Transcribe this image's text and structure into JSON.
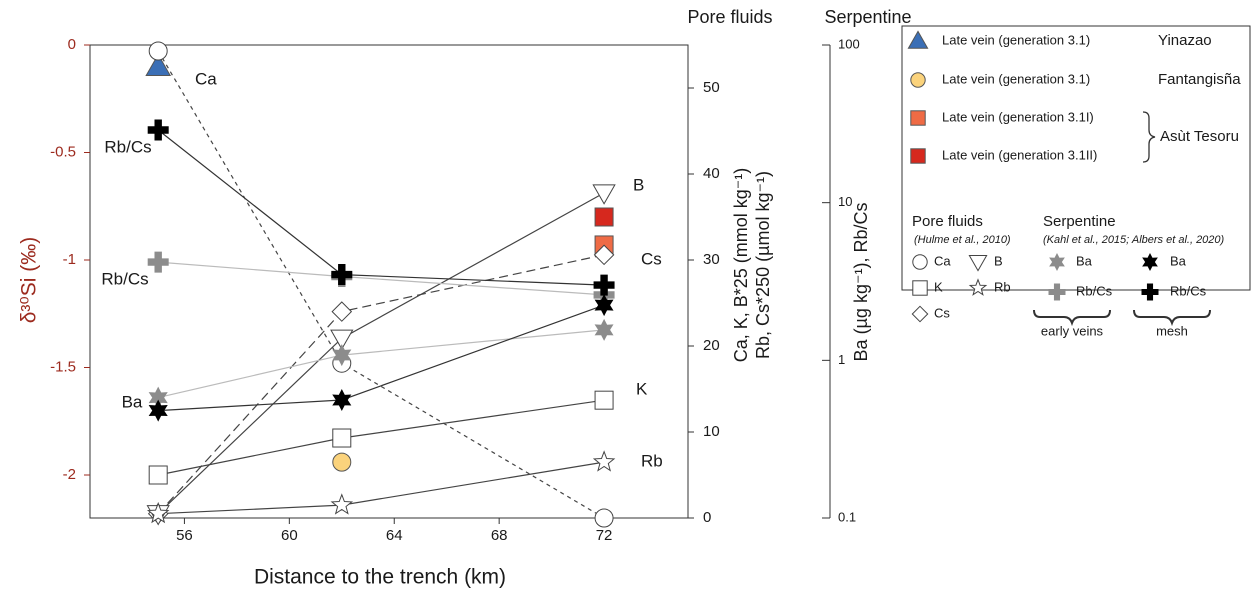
{
  "chart_data": {
    "type": "scatter",
    "x_label": "Distance to the trench (km)",
    "y_label": "δ³⁰Si (‰)",
    "y2_label": [
      "Ca, K, B*25 (mmol kg⁻¹)",
      "Rb, Cs*250 (µmol kg⁻¹)"
    ],
    "y3_label": "Ba (µg kg⁻¹), Rb/Cs",
    "y2_title": "Pore fluids",
    "y3_title": "Serpentine",
    "x": [
      55,
      62,
      72
    ],
    "xlim": [
      52.4,
      75.2
    ],
    "xticks": [
      56,
      60,
      64,
      68,
      72
    ],
    "ylim": [
      -2.2,
      0
    ],
    "yticks": [
      0,
      -0.5,
      -1,
      -1.5,
      -2
    ],
    "y2lim": [
      0,
      55
    ],
    "y2ticks": [
      0,
      10,
      20,
      30,
      40,
      50
    ],
    "y3lim": [
      0.1,
      100
    ],
    "y3ticks": [
      0.1,
      1,
      10,
      100
    ],
    "y3_log": true,
    "annotations": [
      "Ca",
      "Rb/Cs",
      "Rb/Cs",
      "Ba",
      "B",
      "Cs",
      "K",
      "Rb"
    ],
    "series": [
      {
        "name": "Late vein (generation 3.1)",
        "marker": "triangle",
        "color": "#3b6fb6",
        "axis": "y",
        "values": [
          -0.1,
          null,
          null
        ]
      },
      {
        "name": "Late vein (generation 3.1)",
        "marker": "circle",
        "color": "#fbd37c",
        "axis": "y",
        "values": [
          null,
          -1.94,
          null
        ]
      },
      {
        "name": "Late vein (generation 3.1I)",
        "marker": "square",
        "color": "#ef6b45",
        "axis": "y",
        "values": [
          null,
          null,
          -0.93
        ]
      },
      {
        "name": "Late vein (generation 3.1II)",
        "marker": "square",
        "color": "#d6281e",
        "axis": "y",
        "values": [
          null,
          null,
          -0.8
        ]
      },
      {
        "name": "Ca",
        "marker": "circle",
        "color": "#ffffff",
        "line_color": "#444444",
        "dash": "4,4",
        "axis": "y2",
        "values": [
          54.3,
          18.0,
          0
        ]
      },
      {
        "name": "K",
        "marker": "square",
        "color": "#ffffff",
        "line_color": "#444444",
        "axis": "y2",
        "values": [
          5.0,
          9.3,
          13.7
        ]
      },
      {
        "name": "Cs",
        "marker": "diamond",
        "color": "#ffffff",
        "line_color": "#444444",
        "dash": "9,5",
        "axis": "y2",
        "values": [
          0.5,
          24.0,
          30.6
        ]
      },
      {
        "name": "B",
        "marker": "triangle-down",
        "color": "#ffffff",
        "line_color": "#444444",
        "axis": "y2",
        "values": [
          0.5,
          20.9,
          37.8
        ]
      },
      {
        "name": "Rb",
        "marker": "star5",
        "color": "#ffffff",
        "line_color": "#444444",
        "axis": "y2",
        "values": [
          0.5,
          1.5,
          6.5
        ]
      },
      {
        "name": "Ba",
        "marker": "star6",
        "color": "#8c8c8c",
        "line_color": "#bbbbbb",
        "axis": "y3",
        "values": [
          0.58,
          1.08,
          1.56
        ]
      },
      {
        "name": "Rb/Cs",
        "marker": "cross",
        "color": "#8c8c8c",
        "line_color": "#bbbbbb",
        "axis": "y3",
        "values": [
          4.2,
          3.4,
          2.6
        ]
      },
      {
        "name": "Ba",
        "marker": "star6",
        "color": "#000000",
        "line_color": "#333333",
        "axis": "y3",
        "values": [
          0.48,
          0.56,
          2.24
        ]
      },
      {
        "name": "Rb/Cs",
        "marker": "cross",
        "color": "#000000",
        "line_color": "#333333",
        "axis": "y3",
        "values": [
          28.9,
          3.5,
          3.0
        ]
      }
    ],
    "legend": {
      "locations": [
        "Yinazao",
        "Fantangisña",
        "Asùt Tesoru"
      ],
      "pore_title": "Pore fluids",
      "pore_ref": "(Hulme et al., 2010)",
      "serp_title": "Serpentine",
      "serp_ref": "(Kahl et al., 2015; Albers et al., 2020)",
      "groups": [
        "early veins",
        "mesh"
      ]
    }
  }
}
